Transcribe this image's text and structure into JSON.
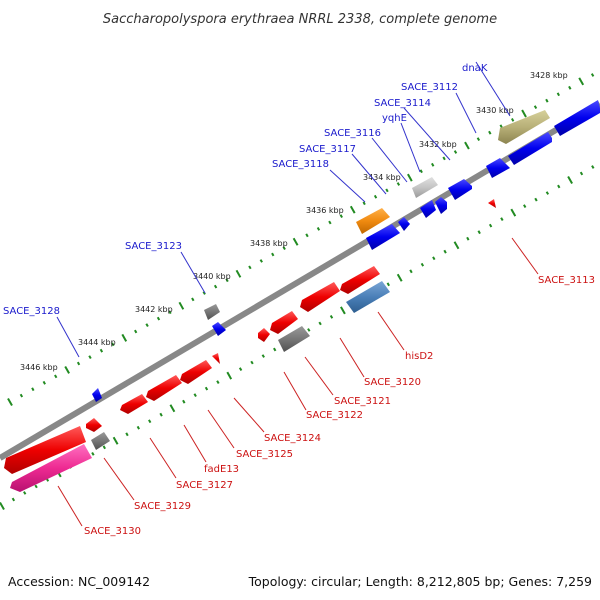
{
  "title": "Saccharopolyspora erythraea NRRL 2338, complete genome",
  "footer": {
    "accession": "Accession: NC_009142",
    "summary": "Topology: circular; Length: 8,212,805 bp; Genes: 7,259"
  },
  "colors": {
    "forward_label": "#1a1acc",
    "reverse_label": "#cc1111",
    "backbone": "#888888",
    "ticks": "#228B22"
  },
  "tick_labels": [
    "3428 kbp",
    "3430 kbp",
    "3432 kbp",
    "3434 kbp",
    "3436 kbp",
    "3438 kbp",
    "3440 kbp",
    "3442 kbp",
    "3444 kbp",
    "3446 kbp"
  ],
  "forward_genes": [
    {
      "label": "dnaK",
      "color": "#b8b078"
    },
    {
      "label": "SACE_3112",
      "color": ""
    },
    {
      "label": "SACE_3114",
      "color": ""
    },
    {
      "label": "yqhE",
      "color": ""
    },
    {
      "label": "SACE_3116",
      "color": ""
    },
    {
      "label": "SACE_3117",
      "color": ""
    },
    {
      "label": "SACE_3118",
      "color": ""
    },
    {
      "label": "SACE_3123",
      "color": ""
    },
    {
      "label": "SACE_3128",
      "color": ""
    }
  ],
  "reverse_genes": [
    {
      "label": "SACE_3113",
      "color": ""
    },
    {
      "label": "hisD2",
      "color": ""
    },
    {
      "label": "SACE_3120",
      "color": ""
    },
    {
      "label": "SACE_3121",
      "color": ""
    },
    {
      "label": "SACE_3122",
      "color": ""
    },
    {
      "label": "SACE_3124",
      "color": ""
    },
    {
      "label": "SACE_3125",
      "color": ""
    },
    {
      "label": "fadE13",
      "color": ""
    },
    {
      "label": "SACE_3127",
      "color": ""
    },
    {
      "label": "SACE_3129",
      "color": ""
    },
    {
      "label": "SACE_3130",
      "color": ""
    }
  ]
}
